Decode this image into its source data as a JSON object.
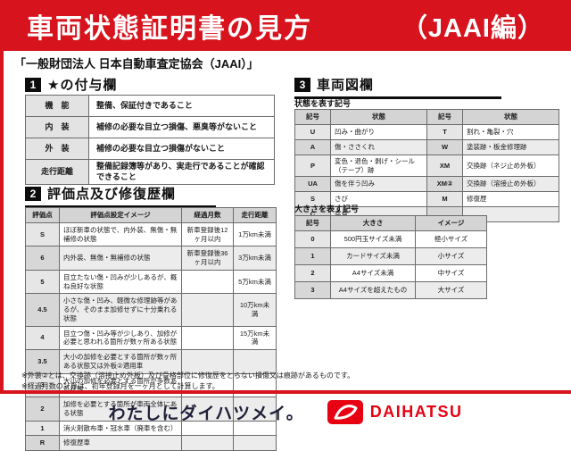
{
  "header": {
    "title": "車両状態証明書の見方",
    "edition": "（JAAI編）"
  },
  "association_line": "「一般財団法人 日本自動車査定協会（JAAI）」",
  "section1": {
    "number": "1",
    "title": "★の付与欄",
    "rows": [
      [
        "機　能",
        "整備、保証付きであること"
      ],
      [
        "内　装",
        "補修の必要な目立つ損傷、悪臭等がないこと"
      ],
      [
        "外　装",
        "補修の必要な目立つ損傷がないこと"
      ],
      [
        "走行距離",
        "整備記録簿等があり、実走行であることが確認できること"
      ]
    ]
  },
  "section2": {
    "number": "2",
    "title": "評価点及び修復歴欄",
    "headers": [
      "評価点",
      "評価点設定イメージ",
      "経過月数",
      "走行距離"
    ],
    "rows": [
      [
        "S",
        "ほぼ新車の状態で、内外装、無傷・無補修の状態",
        "新車登録後12ヶ月以内",
        "1万km未満"
      ],
      [
        "6",
        "内外装、無傷・無補修の状態",
        "新車登録後36ヶ月以内",
        "3万km未満"
      ],
      [
        "5",
        "目立たない傷・凹みが少しあるが、概ね良好な状態",
        "",
        "5万km未満"
      ],
      [
        "4.5",
        "小さな傷・凹み、軽微な修理跡等があるが、そのまま加修せずに十分乗れる状態",
        "",
        "10万km未満"
      ],
      [
        "4",
        "目立つ傷・凹み等が少しあり、加修が必要と思われる箇所が数ヶ所ある状態",
        "",
        "15万km未満"
      ],
      [
        "3.5",
        "大小の加修を必要とする箇所が数ヶ所ある状態又は外板②適用車",
        "",
        ""
      ],
      [
        "3",
        "大小の加修を必要とする箇所が多数ある状態",
        "",
        ""
      ],
      [
        "2",
        "加修を必要とする箇所が車両全体にある状態",
        "",
        ""
      ],
      [
        "1",
        "消火剤散布車・冠水車（廃車を含む）",
        "",
        ""
      ],
      [
        "R",
        "修復歴車",
        "",
        ""
      ]
    ]
  },
  "section3": {
    "number": "3",
    "title": "車両図欄",
    "condition": {
      "label": "状態を表す記号",
      "headers": [
        "記号",
        "状態",
        "記号",
        "状態"
      ],
      "rows": [
        [
          "U",
          "凹み・曲がり",
          "T",
          "割れ・亀裂・穴"
        ],
        [
          "A",
          "傷・ささくれ",
          "W",
          "塗装跡・板金修理跡"
        ],
        [
          "P",
          "変色・退色・剥げ・シール（テープ）跡",
          "XM",
          "交換跡（ネジ止め外板）"
        ],
        [
          "UA",
          "傷を伴う凹み",
          "XM②",
          "交換跡（溶接止め外板）"
        ],
        [
          "S",
          "さび",
          "M",
          "修復歴"
        ],
        [
          "C",
          "腐食",
          "",
          ""
        ]
      ]
    },
    "size": {
      "label": "大きさを表す記号",
      "headers": [
        "記号",
        "大きさ",
        "イメージ"
      ],
      "rows": [
        [
          "0",
          "500円玉サイズ未満",
          "極小サイズ"
        ],
        [
          "1",
          "カードサイズ未満",
          "小サイズ"
        ],
        [
          "2",
          "A4サイズ未満",
          "中サイズ"
        ],
        [
          "3",
          "A4サイズを超えたもの",
          "大サイズ"
        ]
      ]
    }
  },
  "notes": [
    "※外装②とは、交換跡（溶接止め外板）及び骨格部位に修復歴をとらない損傷又は痕跡があるものです。",
    "※経過月数の計算は、初年登録月を一ヶ月として計算します。"
  ],
  "footer": {
    "slogan": "わたしにダイハツメイ。",
    "brand": "DAIHATSU"
  },
  "colors": {
    "header_red": "#d7141e",
    "brand_red": "#e60012",
    "number_box": "#0d0d0d"
  }
}
